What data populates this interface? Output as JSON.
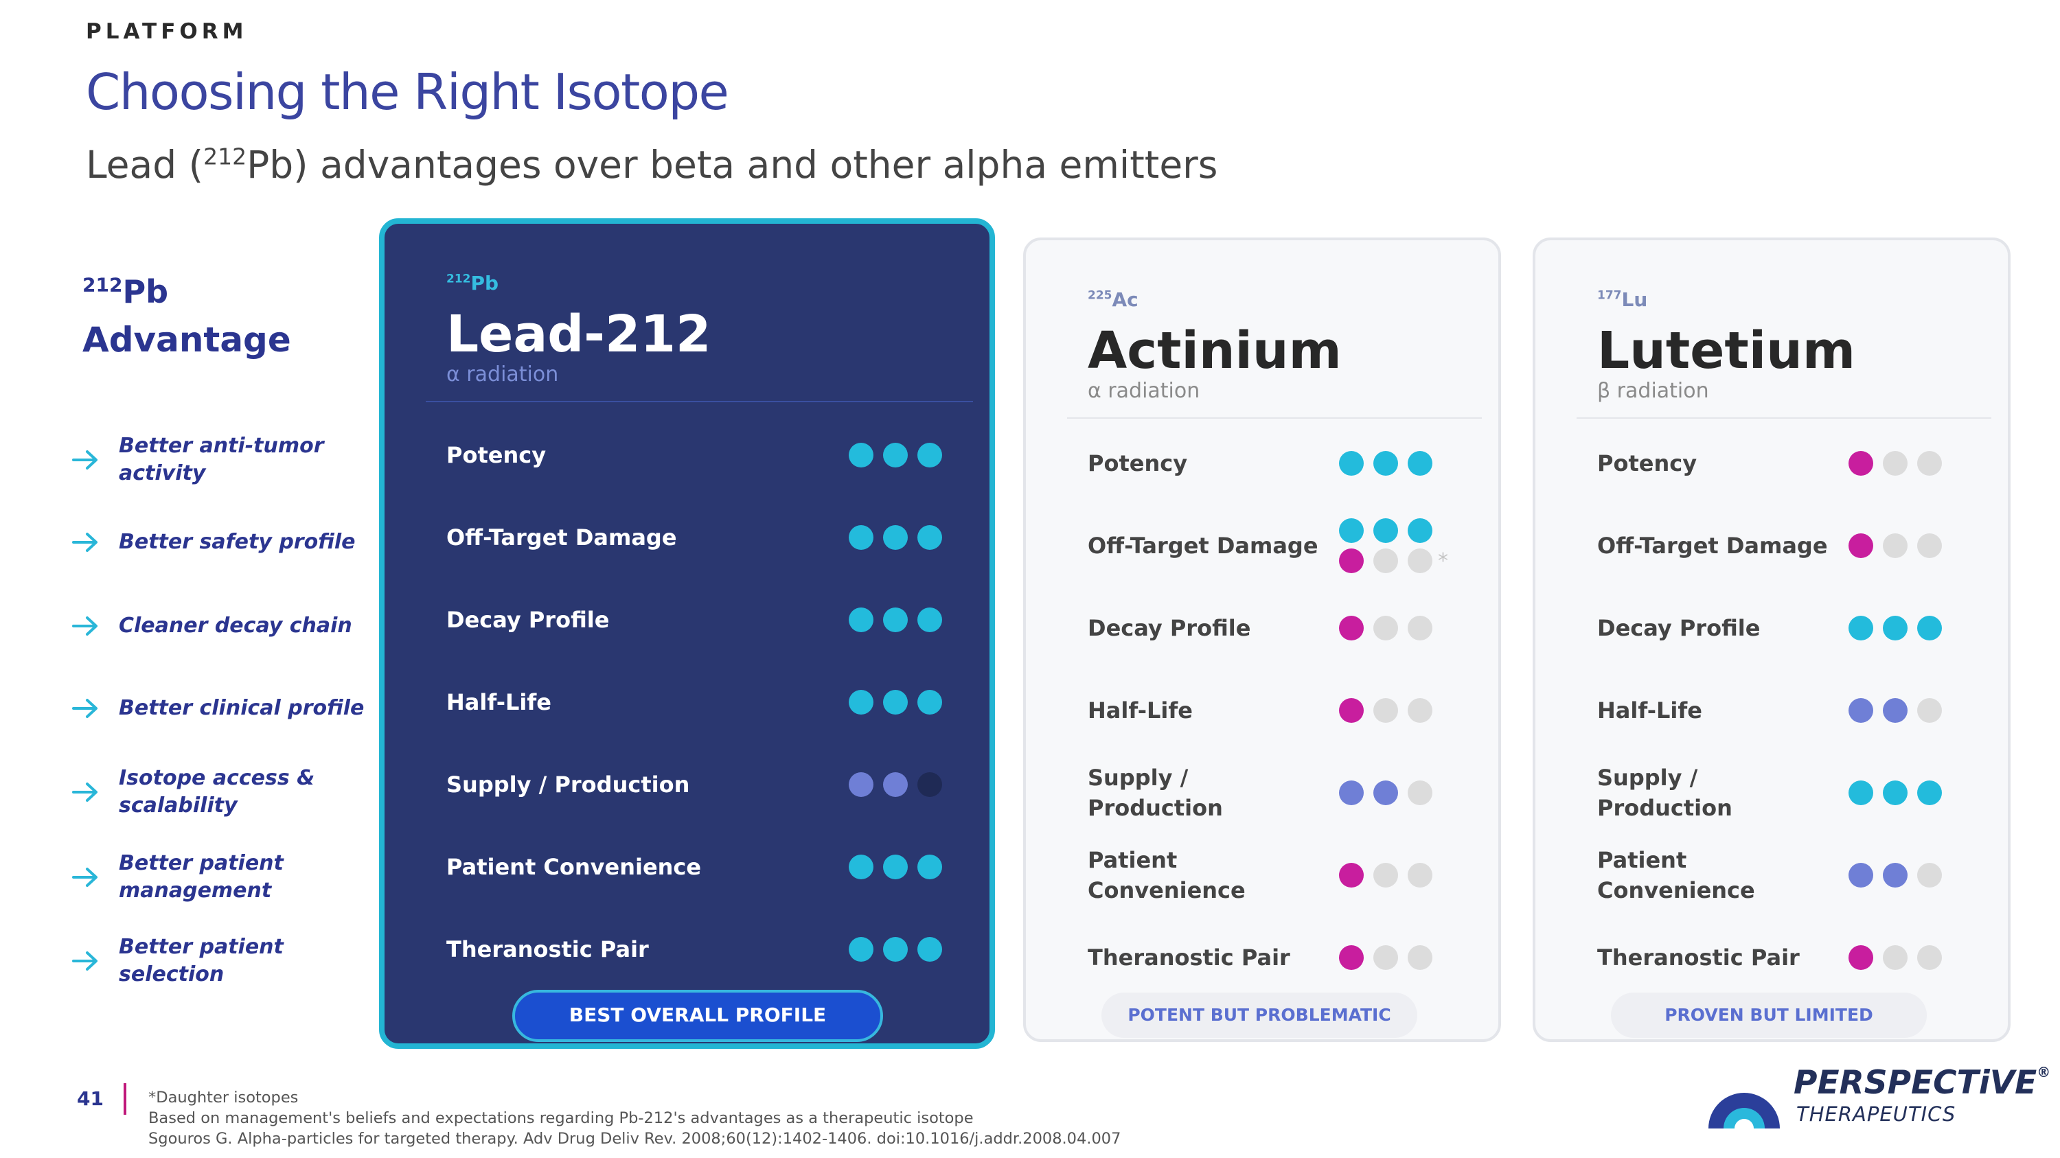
{
  "header": {
    "section": "PLATFORM",
    "title": "Choosing the Right Isotope",
    "subtitle_pre": "Lead (",
    "subtitle_sup": "212",
    "subtitle_post": "Pb) advantages over beta and other alpha emitters"
  },
  "advantage": {
    "sup": "212",
    "symbol": "Pb",
    "word": "Advantage",
    "items": [
      {
        "text": "Better anti-tumor activity"
      },
      {
        "text": "Better safety profile"
      },
      {
        "text": "Cleaner decay chain"
      },
      {
        "text": "Better clinical profile"
      },
      {
        "text": "Isotope access & scalability"
      },
      {
        "text": "Better patient management"
      },
      {
        "text": "Better patient selection"
      }
    ]
  },
  "colors": {
    "cyan": "#23bbdc",
    "magenta": "#c81e9e",
    "periwinkle": "#6f7fd6",
    "grey": "#dcdcdc",
    "dark": "#1f2a55"
  },
  "cards": [
    {
      "sup": "212",
      "symbol": "Pb",
      "name": "Lead-212",
      "radiation": "α radiation",
      "pill": "BEST OVERALL PROFILE",
      "rows": [
        {
          "label": "Potency",
          "dots": [
            "cyan",
            "cyan",
            "cyan"
          ]
        },
        {
          "label": "Off-Target Damage",
          "dots": [
            "cyan",
            "cyan",
            "cyan"
          ]
        },
        {
          "label": "Decay Profile",
          "dots": [
            "cyan",
            "cyan",
            "cyan"
          ]
        },
        {
          "label": "Half-Life",
          "dots": [
            "cyan",
            "cyan",
            "cyan"
          ]
        },
        {
          "label": "Supply / Production",
          "dots": [
            "periwinkle",
            "periwinkle",
            "dark"
          ]
        },
        {
          "label": "Patient Convenience",
          "dots": [
            "cyan",
            "cyan",
            "cyan"
          ]
        },
        {
          "label": "Theranostic Pair",
          "dots": [
            "cyan",
            "cyan",
            "cyan"
          ]
        }
      ]
    },
    {
      "sup": "225",
      "symbol": "Ac",
      "name": "Actinium",
      "radiation": "α radiation",
      "pill": "POTENT BUT PROBLEMATIC",
      "rows": [
        {
          "label": "Potency",
          "dots": [
            "cyan",
            "cyan",
            "cyan"
          ]
        },
        {
          "label": "Off-Target Damage",
          "dots": [
            "cyan",
            "cyan",
            "cyan"
          ],
          "dots2": [
            "magenta",
            "grey",
            "grey"
          ],
          "mark": "*"
        },
        {
          "label": "Decay Profile",
          "dots": [
            "magenta",
            "grey",
            "grey"
          ]
        },
        {
          "label": "Half-Life",
          "dots": [
            "magenta",
            "grey",
            "grey"
          ]
        },
        {
          "label": "Supply / Production",
          "dots": [
            "periwinkle",
            "periwinkle",
            "grey"
          ]
        },
        {
          "label": "Patient Convenience",
          "dots": [
            "magenta",
            "grey",
            "grey"
          ]
        },
        {
          "label": "Theranostic Pair",
          "dots": [
            "magenta",
            "grey",
            "grey"
          ]
        }
      ]
    },
    {
      "sup": "177",
      "symbol": "Lu",
      "name": "Lutetium",
      "radiation": "β radiation",
      "pill": "PROVEN BUT LIMITED",
      "rows": [
        {
          "label": "Potency",
          "dots": [
            "magenta",
            "grey",
            "grey"
          ]
        },
        {
          "label": "Off-Target Damage",
          "dots": [
            "magenta",
            "grey",
            "grey"
          ]
        },
        {
          "label": "Decay Profile",
          "dots": [
            "cyan",
            "cyan",
            "cyan"
          ]
        },
        {
          "label": "Half-Life",
          "dots": [
            "periwinkle",
            "periwinkle",
            "grey"
          ]
        },
        {
          "label": "Supply / Production",
          "dots": [
            "cyan",
            "cyan",
            "cyan"
          ]
        },
        {
          "label": "Patient Convenience",
          "dots": [
            "periwinkle",
            "periwinkle",
            "grey"
          ]
        },
        {
          "label": "Theranostic Pair",
          "dots": [
            "magenta",
            "grey",
            "grey"
          ]
        }
      ]
    }
  ],
  "footer": {
    "page": "41",
    "notes": [
      "*Daughter isotopes",
      "Based on management's beliefs and expectations regarding Pb-212's advantages as a therapeutic isotope",
      "Sgouros G. Alpha-particles for targeted therapy. Adv Drug Deliv Rev. 2008;60(12):1402-1406. doi:10.1016/j.addr.2008.04.007"
    ],
    "logo_word": "PERSPECTiVE",
    "logo_reg": "®",
    "logo_sub": "THERAPEUTICS"
  }
}
